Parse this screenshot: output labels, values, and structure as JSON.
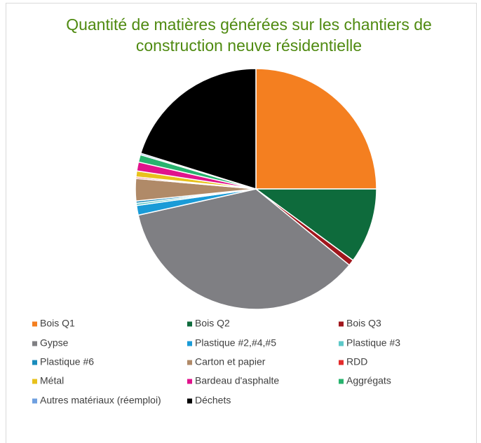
{
  "chart_data": {
    "type": "pie",
    "title": "Quantité de matières générées sur les chantiers de construction neuve résidentielle",
    "categories": [
      "Bois Q1",
      "Bois Q2",
      "Bois Q3",
      "Gypse",
      "Plastique #2,#4,#5",
      "Plastique #3",
      "Plastique #6",
      "Carton et papier",
      "RDD",
      "Métal",
      "Bardeau d'asphalte",
      "Aggrégats",
      "Autres matériaux (réemploi)",
      "Déchets"
    ],
    "values": [
      25,
      10.1,
      0.8,
      35.6,
      1.3,
      0.3,
      0.3,
      3,
      0.2,
      0.8,
      1.2,
      1,
      0.2,
      20.2
    ],
    "colors": [
      "#f47f20",
      "#0e6b3c",
      "#a0161c",
      "#7f7f83",
      "#1a9bd7",
      "#5cc8c8",
      "#1a8cbc",
      "#b08a68",
      "#e32b2b",
      "#e8c11c",
      "#e0138c",
      "#28b36e",
      "#6fa0e0",
      "#000000"
    ],
    "legend": "bottom"
  }
}
